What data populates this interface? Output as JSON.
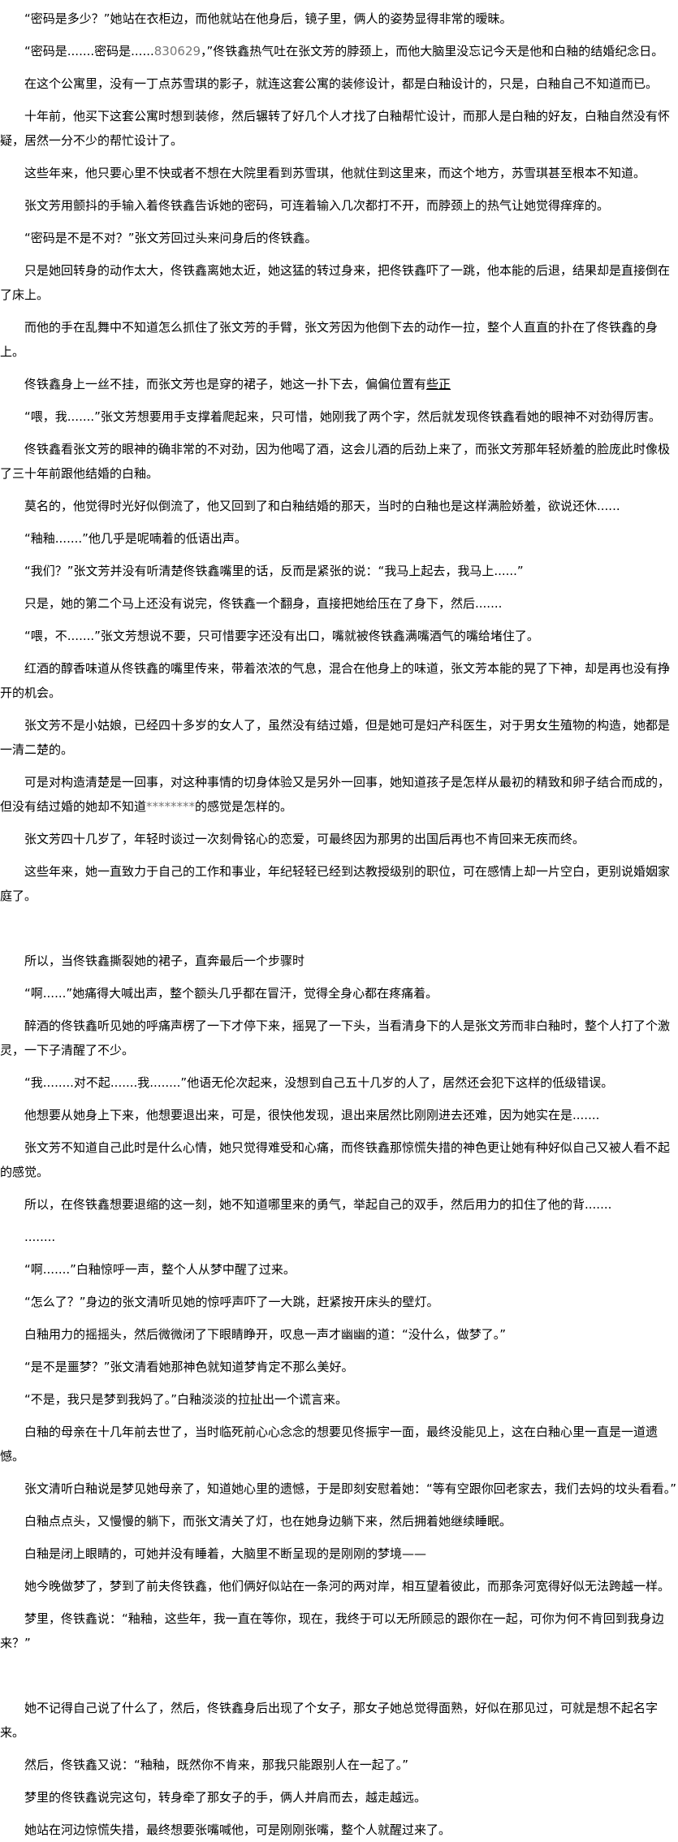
{
  "article": {
    "paragraphs": [
      [
        {
          "t": "“密码是多少？”她站在衣柜边，而他就站在他身后，镜子里，俩人的姿势显得非常的暧昧。"
        }
      ],
      [
        {
          "t": "“密码是.......密码是......"
        },
        {
          "t": "830629",
          "s": "muted"
        },
        {
          "t": "，”佟铁鑫热气吐在张文芳的脖颈上，而他大脑里没忘记今天是他和白釉的结婚纪念日。"
        }
      ],
      [
        {
          "t": "在这个公寓里，没有一丁点苏雪琪的影子，就连这套公寓的装修设计，都是白釉设计的，只是，白釉自己不知道而已。"
        }
      ],
      [
        {
          "t": "十年前，他买下这套公寓时想到装修，然后辗转了好几个人才找了白釉帮忙设计，而那人是白釉的好友，白釉自然没有怀疑，居然一分不少的帮忙设计了。"
        }
      ],
      [
        {
          "t": "这些年来，他只要心里不快或者不想在大院里看到苏雪琪，他就住到这里来，而这个地方，苏雪琪甚至根本不知道。"
        }
      ],
      [
        {
          "t": "张文芳用颤抖的手输入着佟铁鑫告诉她的密码，可连着输入几次都打不开，而脖颈上的热气让她觉得痒痒的。"
        }
      ],
      [
        {
          "t": "“密码是不是不对？”张文芳回过头来问身后的佟铁鑫。"
        }
      ],
      [
        {
          "t": "只是她回转身的动作太大，佟铁鑫离她太近，她这猛的转过身来，把佟铁鑫吓了一跳，他本能的后退，结果却是直接倒在了床上。"
        }
      ],
      [
        {
          "t": "而他的手在乱舞中不知道怎么抓住了张文芳的手臂，张文芳因为他倒下去的动作一拉，整个人直直的扑在了佟铁鑫的身上。"
        }
      ],
      [
        {
          "t": "佟铁鑫身上一丝不挂，而张文芳也是穿的裙子，她这一扑下去，偏偏位置有"
        },
        {
          "t": "些正",
          "s": "ul"
        }
      ],
      [
        {
          "t": "“喂，我.......”张文芳想要用手支撑着爬起来，只可惜，她刚我了两个字，然后就发现佟铁鑫看她的眼神不对劲得厉害。"
        }
      ],
      [
        {
          "t": "佟铁鑫看张文芳的眼神的确非常的不对劲，因为他喝了酒，这会儿酒的后劲上来了，而张文芳那年轻娇羞的脸庞此时像极了三十年前跟他结婚的白釉。"
        }
      ],
      [
        {
          "t": "莫名的，他觉得时光好似倒流了，他又回到了和白釉结婚的那天，当时的白釉也是这样满脸娇羞，欲说还休......"
        }
      ],
      [
        {
          "t": "“釉釉.......”他几乎是呢喃着的低语出声。"
        }
      ],
      [
        {
          "t": "“我们？”张文芳并没有听清楚佟铁鑫嘴里的话，反而是紧张的说：“我马上起去，我马上......”"
        }
      ],
      [
        {
          "t": "只是，她的第二个马上还没有说完，佟铁鑫一个翻身，直接把她给压在了身下，然后......."
        }
      ],
      [
        {
          "t": "“喂，不.......”张文芳想说不要，只可惜要字还没有出口，嘴就被佟铁鑫满嘴酒气的嘴给堵住了。"
        }
      ],
      [
        {
          "t": "红酒的醇香味道从佟铁鑫的嘴里传来，带着浓浓的气息，混合在他身上的味道，张文芳本能的晃了下神，却是再也没有挣开的机会。"
        }
      ],
      [
        {
          "t": "张文芳不是小姑娘，已经四十多岁的女人了，虽然没有结过婚，但是她可是妇产科医生，对于男女生殖物的构造，她都是一清二楚的。"
        }
      ],
      [
        {
          "t": "可是对构造清楚是一回事，对这种事情的切身体验又是另外一回事，她知道孩子是怎样从最初的精致和卵子结合而成的，但没有结过婚的她却不知道"
        },
        {
          "t": "********",
          "s": "muted"
        },
        {
          "t": "的感觉是怎样的。"
        }
      ],
      [
        {
          "t": "张文芳四十几岁了，年轻时谈过一次刻骨铭心的恋爱，可最终因为那男的出国后再也不肯回来无疾而终。"
        }
      ],
      [
        {
          "t": "这些年来，她一直致力于自己的工作和事业，年纪轻轻已经到达教授级别的职位，可在感情上却一片空白，更别说婚姻家庭了。"
        }
      ],
      [],
      [
        {
          "t": "所以，当佟铁鑫撕裂她的裙子，直奔最后一个步骤时"
        }
      ],
      [
        {
          "t": "“啊......”她痛得大喊出声，整个额头几乎都在冒汗，觉得全身心都在疼痛着。"
        }
      ],
      [
        {
          "t": "醉酒的佟铁鑫听见她的呼痛声楞了一下才停下来，摇晃了一下头，当看清身下的人是张文芳而非白釉时，整个人打了个激灵，一下子清醒了不少。"
        }
      ],
      [
        {
          "t": "“我........对不起.......我........”他语无伦次起来，没想到自己五十几岁的人了，居然还会犯下这样的低级错误。"
        }
      ],
      [
        {
          "t": "他想要从她身上下来，他想要退出来，可是，很快他发现，退出来居然比刚刚进去还难，因为她实在是......."
        }
      ],
      [
        {
          "t": "张文芳不知道自己此时是什么心情，她只觉得难受和心痛，而佟铁鑫那惊慌失措的神色更让她有种好似自己又被人看不起的感觉。"
        }
      ],
      [
        {
          "t": "所以，在佟铁鑫想要退缩的这一刻，她不知道哪里来的勇气，举起自己的双手，然后用力的扣住了他的背......."
        }
      ],
      [
        {
          "t": "........"
        }
      ],
      [
        {
          "t": "“啊.......”白釉惊呼一声，整个人从梦中醒了过来。"
        }
      ],
      [
        {
          "t": "“怎么了？”身边的张文清听见她的惊呼声吓了一大跳，赶紧按开床头的壁灯。"
        }
      ],
      [
        {
          "t": "白釉用力的摇摇头，然后微微闭了下眼睛睁开，叹息一声才幽幽的道：“没什么，做梦了。”"
        }
      ],
      [
        {
          "t": "“是不是噩梦？”张文清看她那神色就知道梦肯定不那么美好。"
        }
      ],
      [
        {
          "t": "“不是，我只是梦到我妈了。”白釉淡淡的拉扯出一个谎言来。"
        }
      ],
      [
        {
          "t": "白釉的母亲在十几年前去世了，当时临死前心心念念的想要见佟振宇一面，最终没能见上，这在白釉心里一直是一道遗憾。"
        }
      ],
      [
        {
          "t": "张文清听白釉说是梦见她母亲了，知道她心里的遗憾，于是即刻安慰着她：“等有空跟你回老家去，我们去妈的坟头看看。”"
        }
      ],
      [
        {
          "t": "白釉点点头，又慢慢的躺下，而张文清关了灯，也在她身边躺下来，然后拥着她继续睡眠。"
        }
      ],
      [
        {
          "t": "白釉是闭上眼睛的，可她并没有睡着，大脑里不断呈现的是刚刚的梦境——"
        }
      ],
      [
        {
          "t": "她今晚做梦了，梦到了前夫佟铁鑫，他们俩好似站在一条河的两对岸，相互望着彼此，而那条河宽得好似无法跨越一样。"
        }
      ],
      [
        {
          "t": "梦里，佟铁鑫说：“釉釉，这些年，我一直在等你，现在，我终于可以无所顾忌的跟你在一起，可你为何不肯回到我身边来？”"
        }
      ],
      [],
      [
        {
          "t": "她不记得自己说了什么了，然后，佟铁鑫身后出现了个女子，那女子她总觉得面熟，好似在那见过，可就是想不起名字来。"
        }
      ],
      [
        {
          "t": "然后，佟铁鑫又说：“釉釉，既然你不肯来，那我只能跟别人在一起了。”"
        }
      ],
      [
        {
          "t": "梦里的佟铁鑫说完这句，转身牵了那女子的手，俩人并肩而去，越走越远。"
        }
      ],
      [
        {
          "t": "她站在河边惊慌失措，最终想要张嘴喊他，可是刚刚张嘴，整个人就醒过来了。"
        }
      ]
    ]
  }
}
